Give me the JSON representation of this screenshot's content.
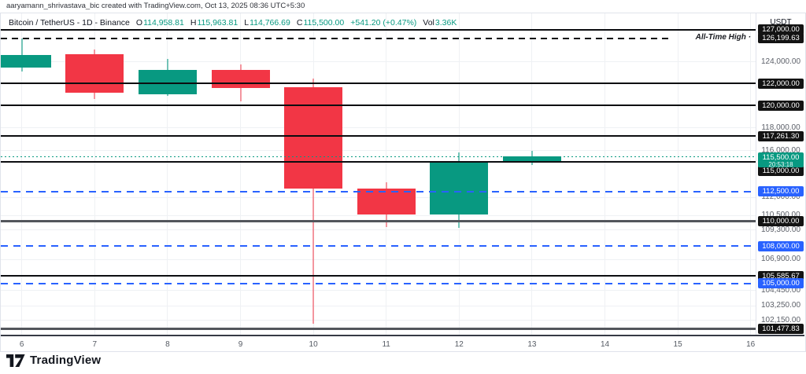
{
  "attribution": "aaryamann_shrivastava_bic created with TradingView.com, Oct 13, 2025 08:36 UTC+5:30",
  "legend": {
    "title": "Bitcoin / TetherUS - 1D - Binance",
    "ohlc": [
      {
        "k": "O",
        "v": "114,958.81"
      },
      {
        "k": "H",
        "v": "115,963.81"
      },
      {
        "k": "L",
        "v": "114,766.69"
      },
      {
        "k": "C",
        "v": "115,500.00"
      }
    ],
    "change": "+541.20 (+0.47%)",
    "vol_label": "Vol",
    "vol_value": "3.36K"
  },
  "price_axis": {
    "currency": "USDT",
    "ticks": [
      {
        "price": 124000,
        "label": "124,000.00"
      },
      {
        "price": 118000,
        "label": "118,000.00"
      },
      {
        "price": 116000,
        "label": "116,000.00"
      },
      {
        "price": 112000,
        "label": "112,000.00"
      },
      {
        "price": 110500,
        "label": "110,500.00"
      },
      {
        "price": 109300,
        "label": "109,300.00"
      },
      {
        "price": 106900,
        "label": "106,900.00"
      },
      {
        "price": 104450,
        "label": "104,450.00"
      },
      {
        "price": 103250,
        "label": "103,250.00"
      },
      {
        "price": 102150,
        "label": "102,150.00"
      }
    ]
  },
  "levels": [
    {
      "price": 127000,
      "label": "127,000.00",
      "style": "solid-black"
    },
    {
      "price": 126199.63,
      "label": "126,199.63",
      "style": "dashed-black",
      "annotation": "All-Time High ·"
    },
    {
      "price": 122000,
      "label": "122,000.00",
      "style": "solid-black"
    },
    {
      "price": 120000,
      "label": "120,000.00",
      "style": "solid-black"
    },
    {
      "price": 117261.3,
      "label": "117,261.30",
      "style": "solid-black"
    },
    {
      "price": 115000,
      "label": "115,000.00",
      "style": "solid-black",
      "label_shift": 11
    },
    {
      "price": 112500,
      "label": "112,500.00",
      "style": "dashed-blue"
    },
    {
      "price": 110000,
      "label": "110,000.00",
      "style": "solid-gray"
    },
    {
      "price": 108000,
      "label": "108,000.00",
      "style": "dashed-blue"
    },
    {
      "price": 105585.67,
      "label": "105,585.67",
      "style": "solid-black"
    },
    {
      "price": 105000,
      "label": "105,000.00",
      "style": "dashed-blue"
    },
    {
      "price": 101477.83,
      "label": "101,477.83",
      "style": "solid-gray"
    }
  ],
  "current_price": {
    "price": 115500,
    "label": "115,500.00",
    "countdown": "20:53:18"
  },
  "x_axis": {
    "labels": [
      "6",
      "7",
      "8",
      "9",
      "10",
      "11",
      "12",
      "13",
      "14",
      "15",
      "16"
    ]
  },
  "logo_text": "TradingView",
  "colors": {
    "up": "#089981",
    "down": "#f23645",
    "up_wick": "rgba(8,153,129,0.55)",
    "down_wick": "rgba(242,54,69,0.5)",
    "line_black": "#0c0d10",
    "line_gray": "#53565c",
    "line_blue": "#2962ff",
    "current": "#089981",
    "badge_black_bg": "#131313",
    "badge_blue_bg": "#2962ff",
    "badge_green_bg": "#089981",
    "grid": "#eff1f4",
    "axis_text": "#5b5f68",
    "text_dark": "#131722",
    "border": "#e0e3eb"
  },
  "chart_data": {
    "type": "candlestick",
    "symbol": "Bitcoin / TetherUS",
    "interval": "1D",
    "exchange": "Binance",
    "y_axis": {
      "scale": "logarithmic",
      "visible_price_range": [
        101050,
        128570
      ],
      "currency": "USDT"
    },
    "x_days": [
      "Oct 6",
      "Oct 7",
      "Oct 8",
      "Oct 9",
      "Oct 10",
      "Oct 11",
      "Oct 12",
      "Oct 13"
    ],
    "candles": [
      {
        "day": "6",
        "open": 123450,
        "high": 126199.63,
        "low": 123090,
        "close": 124620
      },
      {
        "day": "7",
        "open": 124670,
        "high": 125160,
        "low": 120580,
        "close": 121130
      },
      {
        "day": "8",
        "open": 120990,
        "high": 124250,
        "low": 120870,
        "close": 123260
      },
      {
        "day": "9",
        "open": 123260,
        "high": 123770,
        "low": 120340,
        "close": 121600
      },
      {
        "day": "10",
        "open": 121650,
        "high": 122440,
        "low": 101890,
        "close": 112750
      },
      {
        "day": "11",
        "open": 112770,
        "high": 113310,
        "low": 109540,
        "close": 110580
      },
      {
        "day": "12",
        "open": 110560,
        "high": 115840,
        "low": 109480,
        "close": 114980
      },
      {
        "day": "13",
        "open": 114958.81,
        "high": 115963.81,
        "low": 114766.69,
        "close": 115500.0
      }
    ],
    "annotations": [
      "All-Time High at 126,199.63",
      "current price 115,500.00 countdown 20:53:18"
    ],
    "legend_position": "top-left"
  }
}
